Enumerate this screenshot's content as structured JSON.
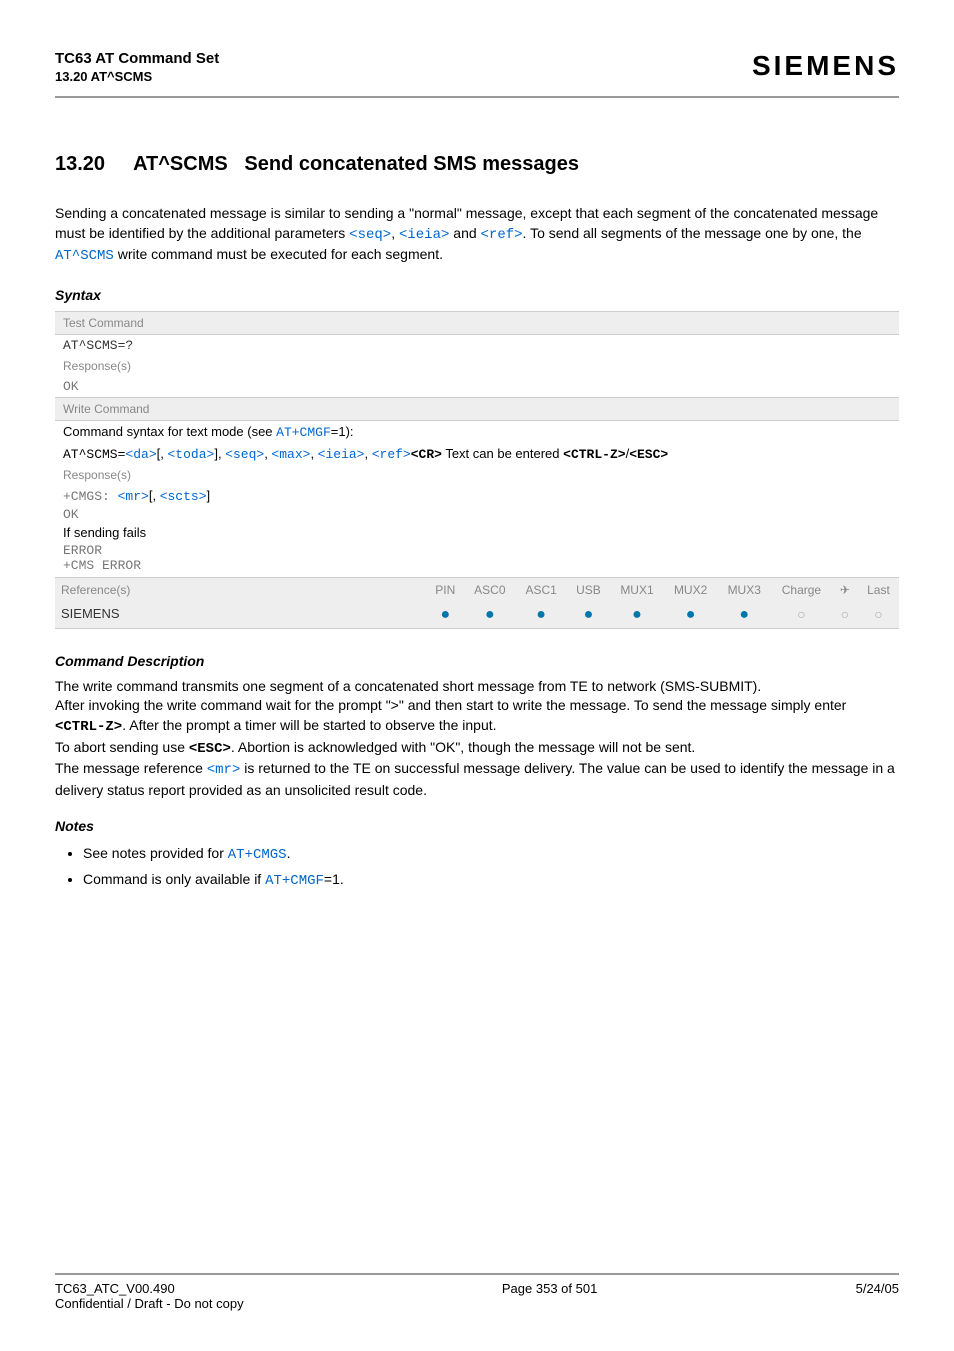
{
  "header": {
    "title": "TC63 AT Command Set",
    "subtitle": "13.20 AT^SCMS",
    "brand": "SIEMENS"
  },
  "section": {
    "number": "13.20",
    "cmd": "AT^SCMS",
    "title": "Send concatenated SMS messages"
  },
  "intro": {
    "p1a": "Sending a concatenated message is similar to sending a \"normal\" message, except that each segment of the concatenated message must be identified by the additional parameters ",
    "seq": "<seq>",
    "c1": ", ",
    "ieia": "<ieia>",
    "c2": " and ",
    "ref": "<ref>",
    "p1b": ". To send all segments of the message one by one, the ",
    "atscms": "AT^SCMS",
    "p1c": " write command must be executed for each segment."
  },
  "syntax": {
    "heading": "Syntax",
    "test_label": "Test Command",
    "test_cmd": "AT^SCMS=?",
    "responses": "Response(s)",
    "ok": "OK",
    "write_label": "Write Command",
    "write_desc1": "Command syntax for text mode (see ",
    "atcmgf": "AT+CMGF",
    "write_desc2": "=1):",
    "write_prefix": "AT^SCMS=",
    "da": "<da>",
    "br1": "[",
    "cm": ", ",
    "toda": "<toda>",
    "br2": "]",
    "p_seq": "<seq>",
    "p_max": "<max>",
    "p_ieia": "<ieia>",
    "p_ref": "<ref>",
    "cr": "<CR>",
    "textentered": " Text can be entered ",
    "ctrlz": "<CTRL-Z>",
    "slash": "/",
    "esc": "<ESC>",
    "cmgs_prefix": "+CMGS: ",
    "mr": "<mr>",
    "scts": "<scts>",
    "fail": "If sending fails",
    "error": "ERROR",
    "cmserror": "+CMS ERROR",
    "references": "Reference(s)",
    "siemens": "SIEMENS",
    "cols": [
      "PIN",
      "ASC0",
      "ASC1",
      "USB",
      "MUX1",
      "MUX2",
      "MUX3",
      "Charge",
      "✈",
      "Last"
    ],
    "dots": [
      "filled",
      "filled",
      "filled",
      "filled",
      "filled",
      "filled",
      "filled",
      "empty",
      "empty",
      "empty"
    ]
  },
  "cmddesc": {
    "heading": "Command Description",
    "p1": "The write command transmits one segment of a concatenated short message from TE to network (SMS-SUBMIT).",
    "p2a": "After invoking the write command wait for the prompt \">\" and then start to write the message. To send the message simply enter ",
    "ctrlz": "<CTRL-Z>",
    "p2b": ". After the prompt a timer will be started to observe the input.",
    "p3a": "To abort sending use ",
    "esc": "<ESC>",
    "p3b": ". Abortion is acknowledged with \"OK\", though the message will not be sent.",
    "p4a": "The message reference ",
    "mr": "<mr>",
    "p4b": " is returned to the TE on successful message delivery. The value can be used to identify the message in a delivery status report provided as an unsolicited result code."
  },
  "notes": {
    "heading": "Notes",
    "n1a": "See notes provided for ",
    "atcmgs": "AT+CMGS",
    "n1b": ".",
    "n2a": "Command is only available if ",
    "atcmgf": "AT+CMGF",
    "n2b": "=1."
  },
  "footer": {
    "left1": "TC63_ATC_V00.490",
    "left2": "Confidential / Draft - Do not copy",
    "center": "Page 353 of 501",
    "right": "5/24/05"
  },
  "colors": {
    "link": "#0066cc",
    "section_bg": "#eeeeee",
    "section_text": "#888888",
    "dot_filled": "#0077aa",
    "border": "#999999"
  }
}
